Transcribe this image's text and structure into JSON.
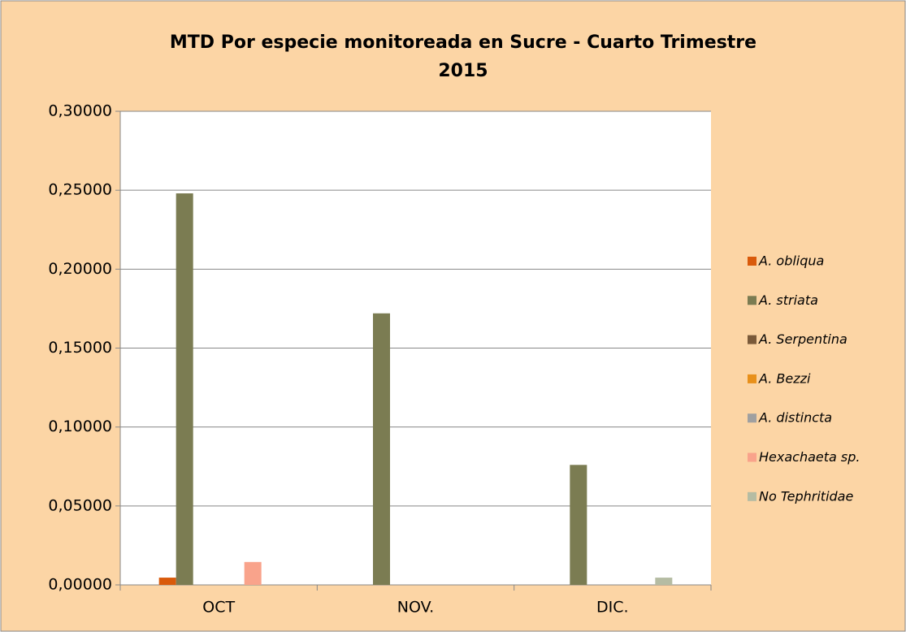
{
  "chart_data": {
    "type": "bar",
    "title": "MTD Por especie monitoreada en Sucre - Cuarto Trimestre",
    "subtitle": "2015",
    "categories": [
      "OCT",
      "NOV.",
      "DIC."
    ],
    "series": [
      {
        "name": "A. obliqua",
        "color": "#d95a0b",
        "values": [
          0.0046,
          0,
          0
        ]
      },
      {
        "name": "A. striata",
        "color": "#7b7c52",
        "values": [
          0.248,
          0.172,
          0.076
        ]
      },
      {
        "name": "A. Serpentina",
        "color": "#7a5a3a",
        "values": [
          0,
          0,
          0
        ]
      },
      {
        "name": "A. Bezzi",
        "color": "#e8901a",
        "values": [
          0,
          0,
          0
        ]
      },
      {
        "name": "A. distincta",
        "color": "#a0a0a0",
        "values": [
          0,
          0,
          0
        ]
      },
      {
        "name": "Hexachaeta sp.",
        "color": "#f9a38b",
        "values": [
          0.0145,
          0,
          0
        ]
      },
      {
        "name": "No Tephritidae",
        "color": "#b5bca3",
        "values": [
          0,
          0,
          0.0046
        ]
      }
    ],
    "ylim": [
      0,
      0.3
    ],
    "yticks": [
      {
        "value": 0,
        "label": "0,00000"
      },
      {
        "value": 0.05,
        "label": "0,05000"
      },
      {
        "value": 0.1,
        "label": "0,10000"
      },
      {
        "value": 0.15,
        "label": "0,15000"
      },
      {
        "value": 0.2,
        "label": "0,20000"
      },
      {
        "value": 0.25,
        "label": "0,25000"
      },
      {
        "value": 0.3,
        "label": "0,30000"
      }
    ],
    "grid": true,
    "legend": "right"
  }
}
